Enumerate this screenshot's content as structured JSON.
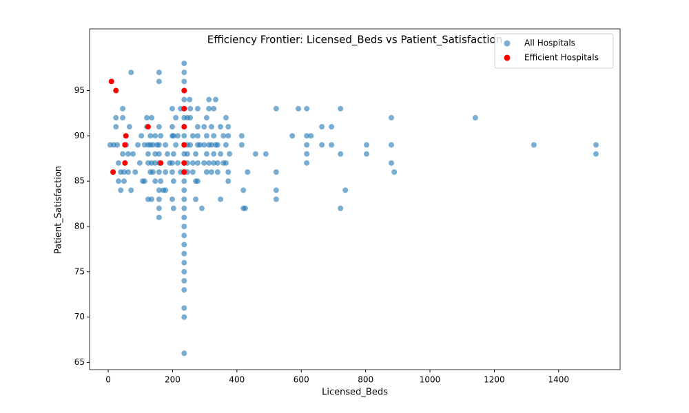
{
  "chart_data": {
    "type": "scatter",
    "title": "Efficiency Frontier: Licensed_Beds vs Patient_Satisfaction",
    "x_label": "Licensed_Beds",
    "y_label": "Patient_Satisfaction",
    "xlim": [
      -58,
      1591
    ],
    "ylim": [
      64.2,
      101.8
    ],
    "xticks": [
      0,
      200,
      400,
      600,
      800,
      1000,
      1200,
      1400
    ],
    "yticks": [
      65,
      70,
      75,
      80,
      85,
      90,
      95
    ],
    "legend": "upper right",
    "series": [
      {
        "name": "All Hospitals",
        "color": "#1f77b4",
        "alpha": 0.6,
        "x": [
          236,
          236,
          236,
          236,
          236,
          236,
          236,
          236,
          236,
          236,
          236,
          236,
          236,
          236,
          236,
          236,
          236,
          236,
          236,
          236,
          236,
          236,
          236,
          236,
          236,
          236,
          236,
          236,
          236,
          6,
          17,
          24,
          24,
          28,
          32,
          32,
          39,
          39,
          45,
          45,
          45,
          49,
          49,
          56,
          62,
          62,
          66,
          71,
          71,
          77,
          84,
          92,
          98,
          103,
          107,
          113,
          113,
          120,
          120,
          124,
          124,
          124,
          124,
          131,
          131,
          131,
          135,
          135,
          135,
          139,
          139,
          146,
          146,
          146,
          146,
          152,
          158,
          158,
          158,
          158,
          158,
          158,
          158,
          158,
          158,
          158,
          158,
          163,
          163,
          171,
          178,
          178,
          178,
          184,
          191,
          199,
          199,
          199,
          199,
          199,
          199,
          203,
          203,
          203,
          203,
          210,
          210,
          216,
          216,
          225,
          225,
          253,
          246,
          246,
          246,
          246,
          246,
          255,
          255,
          255,
          263,
          263,
          263,
          272,
          272,
          272,
          278,
          278,
          278,
          278,
          278,
          278,
          285,
          291,
          298,
          298,
          298,
          306,
          306,
          306,
          306,
          313,
          313,
          313,
          313,
          321,
          321,
          321,
          328,
          328,
          328,
          328,
          334,
          334,
          340,
          340,
          340,
          349,
          349,
          349,
          358,
          358,
          366,
          366,
          366,
          373,
          373,
          373,
          373,
          377,
          415,
          415,
          420,
          420,
          426,
          433,
          458,
          490,
          522,
          522,
          522,
          522,
          572,
          591,
          617,
          617,
          617,
          617,
          617,
          630,
          664,
          664,
          694,
          694,
          722,
          722,
          722,
          737,
          803,
          803,
          880,
          880,
          880,
          889,
          1141,
          1323,
          1516,
          1516
        ],
        "values": [
          66,
          70,
          71,
          73,
          74,
          75,
          76,
          77,
          78,
          79,
          80,
          81,
          82,
          83,
          84,
          85,
          86,
          87,
          88,
          89,
          90,
          91,
          92,
          93,
          94,
          95,
          96,
          97,
          98,
          89,
          89,
          91,
          92,
          89,
          87,
          85,
          84,
          86,
          92,
          93,
          88,
          85,
          86,
          89,
          86,
          88,
          91,
          97,
          84,
          88,
          86,
          89,
          87,
          90,
          85,
          89,
          85,
          91,
          92,
          83,
          87,
          88,
          89,
          86,
          89,
          90,
          83,
          87,
          92,
          86,
          89,
          85,
          87,
          88,
          90,
          89,
          97,
          96,
          91,
          89,
          88,
          87,
          86,
          84,
          83,
          82,
          81,
          90,
          85,
          84,
          89,
          86,
          84,
          88,
          87,
          93,
          91,
          90,
          87,
          86,
          83,
          90,
          88,
          85,
          82,
          92,
          89,
          90,
          87,
          86,
          93,
          94,
          92,
          89,
          88,
          87,
          86,
          89,
          92,
          93,
          86,
          90,
          87,
          88,
          85,
          83,
          93,
          91,
          90,
          89,
          87,
          85,
          89,
          82,
          89,
          91,
          87,
          92,
          90,
          88,
          86,
          94,
          93,
          89,
          87,
          91,
          89,
          86,
          93,
          90,
          88,
          87,
          94,
          89,
          89,
          87,
          86,
          91,
          88,
          83,
          90,
          87,
          92,
          89,
          87,
          91,
          90,
          86,
          85,
          88,
          90,
          89,
          84,
          82,
          82,
          86,
          88,
          88,
          93,
          86,
          84,
          83,
          90,
          93,
          93,
          90,
          89,
          88,
          87,
          90,
          91,
          89,
          91,
          89,
          93,
          88,
          82,
          84,
          89,
          88,
          92,
          89,
          87,
          86,
          92,
          89,
          89,
          88
        ]
      },
      {
        "name": "Efficient Hospitals",
        "color": "#ff0000",
        "x": [
          10,
          24,
          15,
          52,
          52,
          55,
          124,
          163,
          236,
          236,
          236,
          236,
          236,
          236
        ],
        "values": [
          96,
          95,
          86,
          87,
          89,
          90,
          91,
          87,
          95,
          93,
          91,
          89,
          87,
          86
        ]
      }
    ]
  }
}
